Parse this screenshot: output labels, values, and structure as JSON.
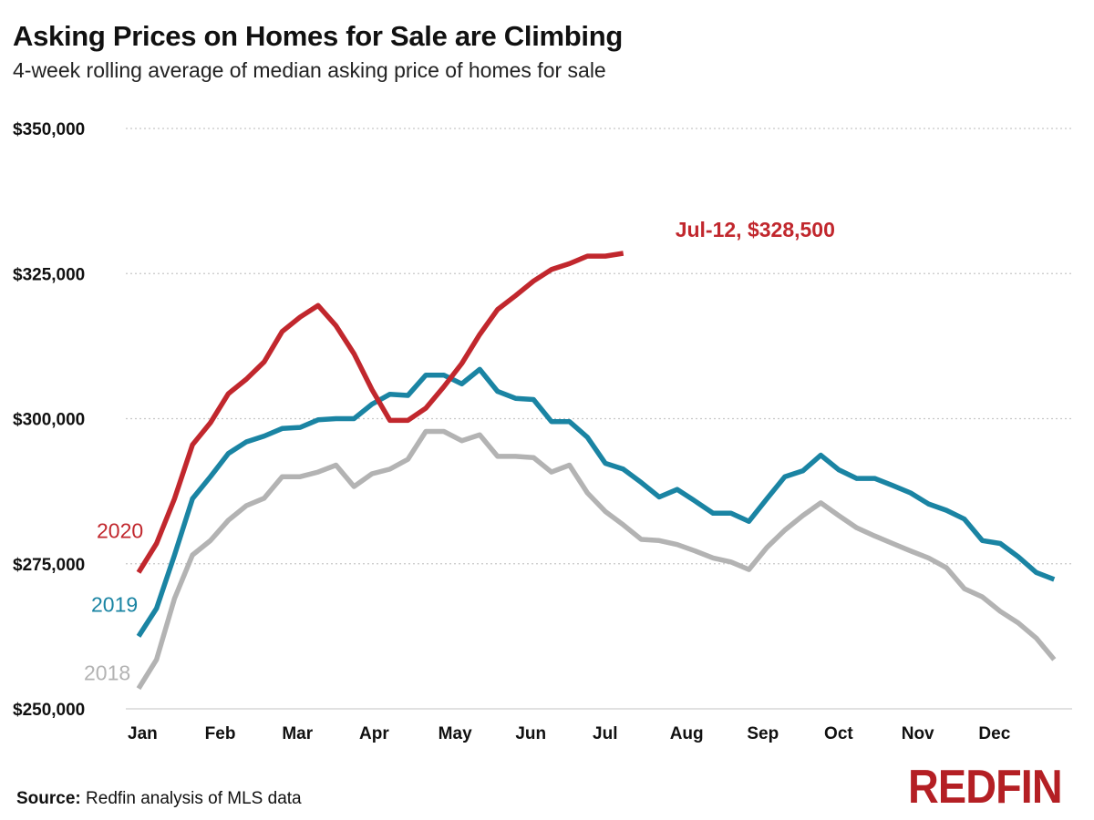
{
  "title": "Asking Prices on Homes for Sale are Climbing",
  "subtitle": "4-week rolling average of median asking price of homes for sale",
  "source_label": "Source:",
  "source_text": "Redfin analysis of MLS data",
  "logo": "REDFIN",
  "chart_data": {
    "type": "line",
    "ylim": [
      250000,
      350000
    ],
    "yticks": [
      250000,
      275000,
      300000,
      325000,
      350000
    ],
    "ytick_labels": [
      "$250,000",
      "$275,000",
      "$300,000",
      "$325,000",
      "$350,000"
    ],
    "xlim": [
      1,
      53
    ],
    "xticks": [
      1,
      5.3,
      9.6,
      13.9,
      18.3,
      22.6,
      26.9,
      31.2,
      35.5,
      39.8,
      44.1,
      48.4
    ],
    "xtick_labels": [
      "Jan",
      "Feb",
      "Mar",
      "Apr",
      "May",
      "Jun",
      "Jul",
      "Aug",
      "Sep",
      "Oct",
      "Nov",
      "Dec"
    ],
    "x_unit": "week of year",
    "grid": true,
    "colors": {
      "2018": "#b3b3b3",
      "2019": "#1a84a3",
      "2020": "#c1272d"
    },
    "series": [
      {
        "name": "2018",
        "values": [
          253500,
          258500,
          269000,
          276500,
          279000,
          282500,
          285000,
          286300,
          290000,
          290000,
          290800,
          292000,
          288300,
          290500,
          291300,
          293000,
          297800,
          297800,
          296200,
          297200,
          293500,
          293500,
          293300,
          290800,
          292000,
          287200,
          284000,
          281700,
          279200,
          279000,
          278300,
          277200,
          276000,
          275300,
          274000,
          277800,
          280800,
          283300,
          285500,
          283300,
          281200,
          279800,
          278500,
          277200,
          276000,
          274300,
          270700,
          269300,
          266800,
          264800,
          262200,
          258500
        ]
      },
      {
        "name": "2019",
        "values": [
          262500,
          267300,
          276500,
          286200,
          290000,
          294000,
          296000,
          297000,
          298300,
          298500,
          299800,
          300000,
          300000,
          302500,
          304200,
          304000,
          307500,
          307500,
          306000,
          308500,
          304700,
          303500,
          303300,
          299500,
          299500,
          296800,
          292300,
          291300,
          289000,
          286500,
          287800,
          285800,
          283700,
          283700,
          282300,
          286200,
          290000,
          291000,
          293700,
          291200,
          289700,
          289700,
          288500,
          287200,
          285300,
          284200,
          282700,
          279000,
          278500,
          276200,
          273500,
          272300
        ]
      },
      {
        "name": "2020",
        "values": [
          273500,
          278500,
          286200,
          295500,
          299300,
          304300,
          306800,
          309800,
          315000,
          317500,
          319500,
          316000,
          311200,
          305000,
          299700,
          299700,
          301800,
          305500,
          309500,
          314500,
          318800,
          321200,
          323700,
          325700,
          326700,
          328000,
          328000,
          328500
        ]
      }
    ],
    "annotation": {
      "text": "Jul-12, $328,500",
      "x": 28,
      "y": 328500,
      "series": "2020"
    }
  }
}
